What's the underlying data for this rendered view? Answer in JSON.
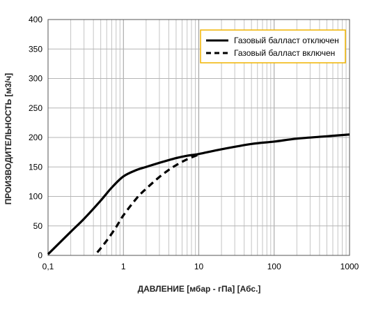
{
  "chart_data": {
    "type": "line",
    "xlabel": "ДАВЛЕНИЕ [мбар - гПа] [Абс.]",
    "ylabel": "ПРОИЗВОДИТЕЛЬНОСТЬ [м3/ч]",
    "x_scale": "log",
    "xlim": [
      0.1,
      1000
    ],
    "ylim": [
      0,
      400
    ],
    "x_ticks": [
      0.1,
      1,
      10,
      100,
      1000
    ],
    "x_tick_labels": [
      "0,1",
      "1",
      "10",
      "100",
      "1000"
    ],
    "y_ticks": [
      0,
      50,
      100,
      150,
      200,
      250,
      300,
      350,
      400
    ],
    "y_tick_labels": [
      "0",
      "50",
      "100",
      "150",
      "200",
      "250",
      "300",
      "350",
      "400"
    ],
    "grid": true,
    "legend_position": "top-right",
    "legend_border_color": "#f0b400",
    "series": [
      {
        "name": "Газовый балласт отключен",
        "style": "solid",
        "color": "#000000",
        "x": [
          0.1,
          0.2,
          0.3,
          0.5,
          0.7,
          1.0,
          1.5,
          2,
          3,
          5,
          7,
          10,
          20,
          50,
          100,
          200,
          500,
          1000
        ],
        "y": [
          2,
          40,
          62,
          93,
          115,
          134,
          145,
          150,
          157,
          165,
          169,
          172,
          180,
          189,
          193,
          198,
          202,
          205
        ]
      },
      {
        "name": "Газовый балласт включен",
        "style": "dashed",
        "color": "#000000",
        "x": [
          0.45,
          0.6,
          0.8,
          1.0,
          1.5,
          2,
          3,
          4,
          5,
          7,
          10
        ],
        "y": [
          5,
          25,
          48,
          68,
          97,
          113,
          133,
          145,
          153,
          163,
          171
        ]
      }
    ]
  }
}
